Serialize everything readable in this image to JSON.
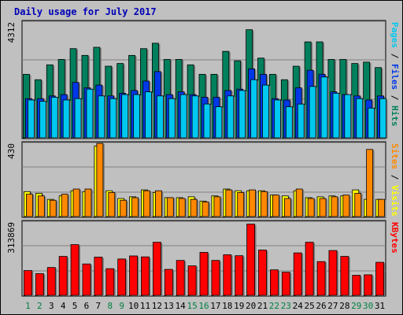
{
  "title": "Daily usage for July 2017",
  "colors": {
    "hits": "#00805c",
    "files": "#0038e8",
    "pages": "#00c8f0",
    "visits": "#ffff00",
    "sites": "#ff8800",
    "kbytes": "#ff0000",
    "axis_text": "#000000",
    "weekend": "#008040"
  },
  "chart_data": [
    {
      "type": "bar",
      "name": "hits-files-pages",
      "ytick_label": "4312",
      "ymax": 4312,
      "right_label_parts": [
        "Pages",
        " / ",
        "Files",
        " / ",
        "Hits"
      ],
      "x": [
        1,
        2,
        3,
        4,
        5,
        6,
        7,
        8,
        9,
        10,
        11,
        12,
        13,
        14,
        15,
        16,
        17,
        18,
        19,
        20,
        21,
        22,
        23,
        24,
        25,
        26,
        27,
        28,
        29,
        30,
        31
      ],
      "series": [
        {
          "name": "Hits",
          "values": [
            2350,
            2150,
            2700,
            2900,
            3300,
            3050,
            3350,
            2650,
            2750,
            3050,
            3300,
            3500,
            2900,
            2900,
            2700,
            2350,
            2350,
            3200,
            2850,
            4000,
            2950,
            2350,
            2150,
            2650,
            3550,
            3550,
            2900,
            2900,
            2750,
            2800,
            2600
          ]
        },
        {
          "name": "Files",
          "values": [
            1450,
            1450,
            1550,
            1600,
            2050,
            1850,
            1950,
            1550,
            1650,
            1750,
            2100,
            2450,
            1600,
            1700,
            1600,
            1500,
            1500,
            1750,
            1800,
            2550,
            2350,
            1450,
            1400,
            1850,
            2500,
            2350,
            1700,
            1600,
            1550,
            1400,
            1550
          ]
        },
        {
          "name": "Pages",
          "values": [
            1400,
            1350,
            1500,
            1400,
            1450,
            1800,
            1550,
            1450,
            1600,
            1600,
            1700,
            1550,
            1450,
            1600,
            1550,
            1250,
            1150,
            1550,
            1750,
            2150,
            1950,
            1400,
            1150,
            1250,
            1900,
            2250,
            1650,
            1600,
            1450,
            1100,
            1450
          ]
        }
      ]
    },
    {
      "type": "bar",
      "name": "visits-sites",
      "ytick_label": "430",
      "ymax": 430,
      "right_label_parts": [
        "Sites",
        " / ",
        "Visits"
      ],
      "x": [
        1,
        2,
        3,
        4,
        5,
        6,
        7,
        8,
        9,
        10,
        11,
        12,
        13,
        14,
        15,
        16,
        17,
        18,
        19,
        20,
        21,
        22,
        23,
        24,
        25,
        26,
        27,
        28,
        29,
        30,
        31
      ],
      "series": [
        {
          "name": "Visits",
          "values": [
            145,
            135,
            100,
            120,
            150,
            145,
            410,
            150,
            105,
            115,
            155,
            140,
            110,
            110,
            115,
            90,
            120,
            160,
            150,
            150,
            150,
            125,
            120,
            150,
            110,
            115,
            120,
            120,
            155,
            100,
            100
          ]
        },
        {
          "name": "Sites",
          "values": [
            130,
            120,
            95,
            130,
            160,
            160,
            425,
            140,
            95,
            110,
            150,
            150,
            110,
            105,
            100,
            85,
            115,
            155,
            140,
            155,
            145,
            125,
            105,
            160,
            105,
            105,
            115,
            125,
            135,
            390,
            100
          ]
        }
      ]
    },
    {
      "type": "bar",
      "name": "kbytes",
      "ytick_label": "313869",
      "ymax": 313869,
      "right_label_parts": [
        "KBytes"
      ],
      "x": [
        1,
        2,
        3,
        4,
        5,
        6,
        7,
        8,
        9,
        10,
        11,
        12,
        13,
        14,
        15,
        16,
        17,
        18,
        19,
        20,
        21,
        22,
        23,
        24,
        25,
        26,
        27,
        28,
        29,
        30,
        31
      ],
      "series": [
        {
          "name": "KBytes",
          "values": [
            105000,
            92000,
            118000,
            165000,
            215000,
            133000,
            162000,
            113000,
            154000,
            167000,
            163000,
            225000,
            110000,
            148000,
            125000,
            182000,
            148000,
            172000,
            168000,
            302000,
            192000,
            108000,
            98000,
            180000,
            225000,
            143000,
            190000,
            165000,
            85000,
            87000,
            140000
          ]
        }
      ]
    }
  ],
  "weekend_days": [
    1,
    2,
    8,
    9,
    15,
    16,
    22,
    23,
    29,
    30
  ]
}
